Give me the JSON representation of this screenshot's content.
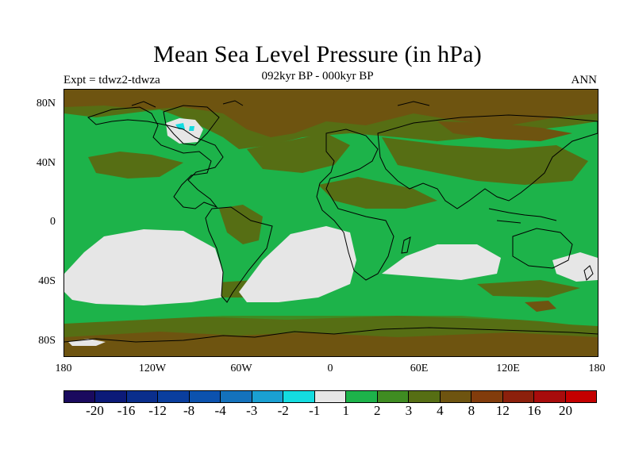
{
  "header": {
    "title": "Mean Sea Level Pressure (in hPa)",
    "subtitle": "092kyr BP - 000kyr BP",
    "expt": "Expt = tdwz2-tdwza",
    "season": "ANN"
  },
  "axes": {
    "lat_labels": [
      "80N",
      "40N",
      "0",
      "40S",
      "80S"
    ],
    "lon_labels": [
      "180",
      "120W",
      "60W",
      "0",
      "60E",
      "120E",
      "180"
    ]
  },
  "colorbar": {
    "labels": [
      "-20",
      "-16",
      "-12",
      "-8",
      "-4",
      "-3",
      "-2",
      "-1",
      "1",
      "2",
      "3",
      "4",
      "8",
      "12",
      "16",
      "20"
    ],
    "colors": [
      "#1a0a5e",
      "#0c1a78",
      "#0a2e8c",
      "#0a3e9e",
      "#0c52ae",
      "#1472bc",
      "#1aa0d2",
      "#14dce0",
      "#e6e6e6",
      "#1db34a",
      "#3f8c22",
      "#566e14",
      "#6e5410",
      "#823c0c",
      "#8c200c",
      "#a80c0c",
      "#c40000"
    ]
  },
  "fill_colors": {
    "ocean_low": "#e6e6e6",
    "green_1_2": "#1db34a",
    "green_2_3": "#3f8c22",
    "olive_3_4": "#566e14",
    "brown_4_8": "#6e5410",
    "cyan": "#14dce0"
  }
}
